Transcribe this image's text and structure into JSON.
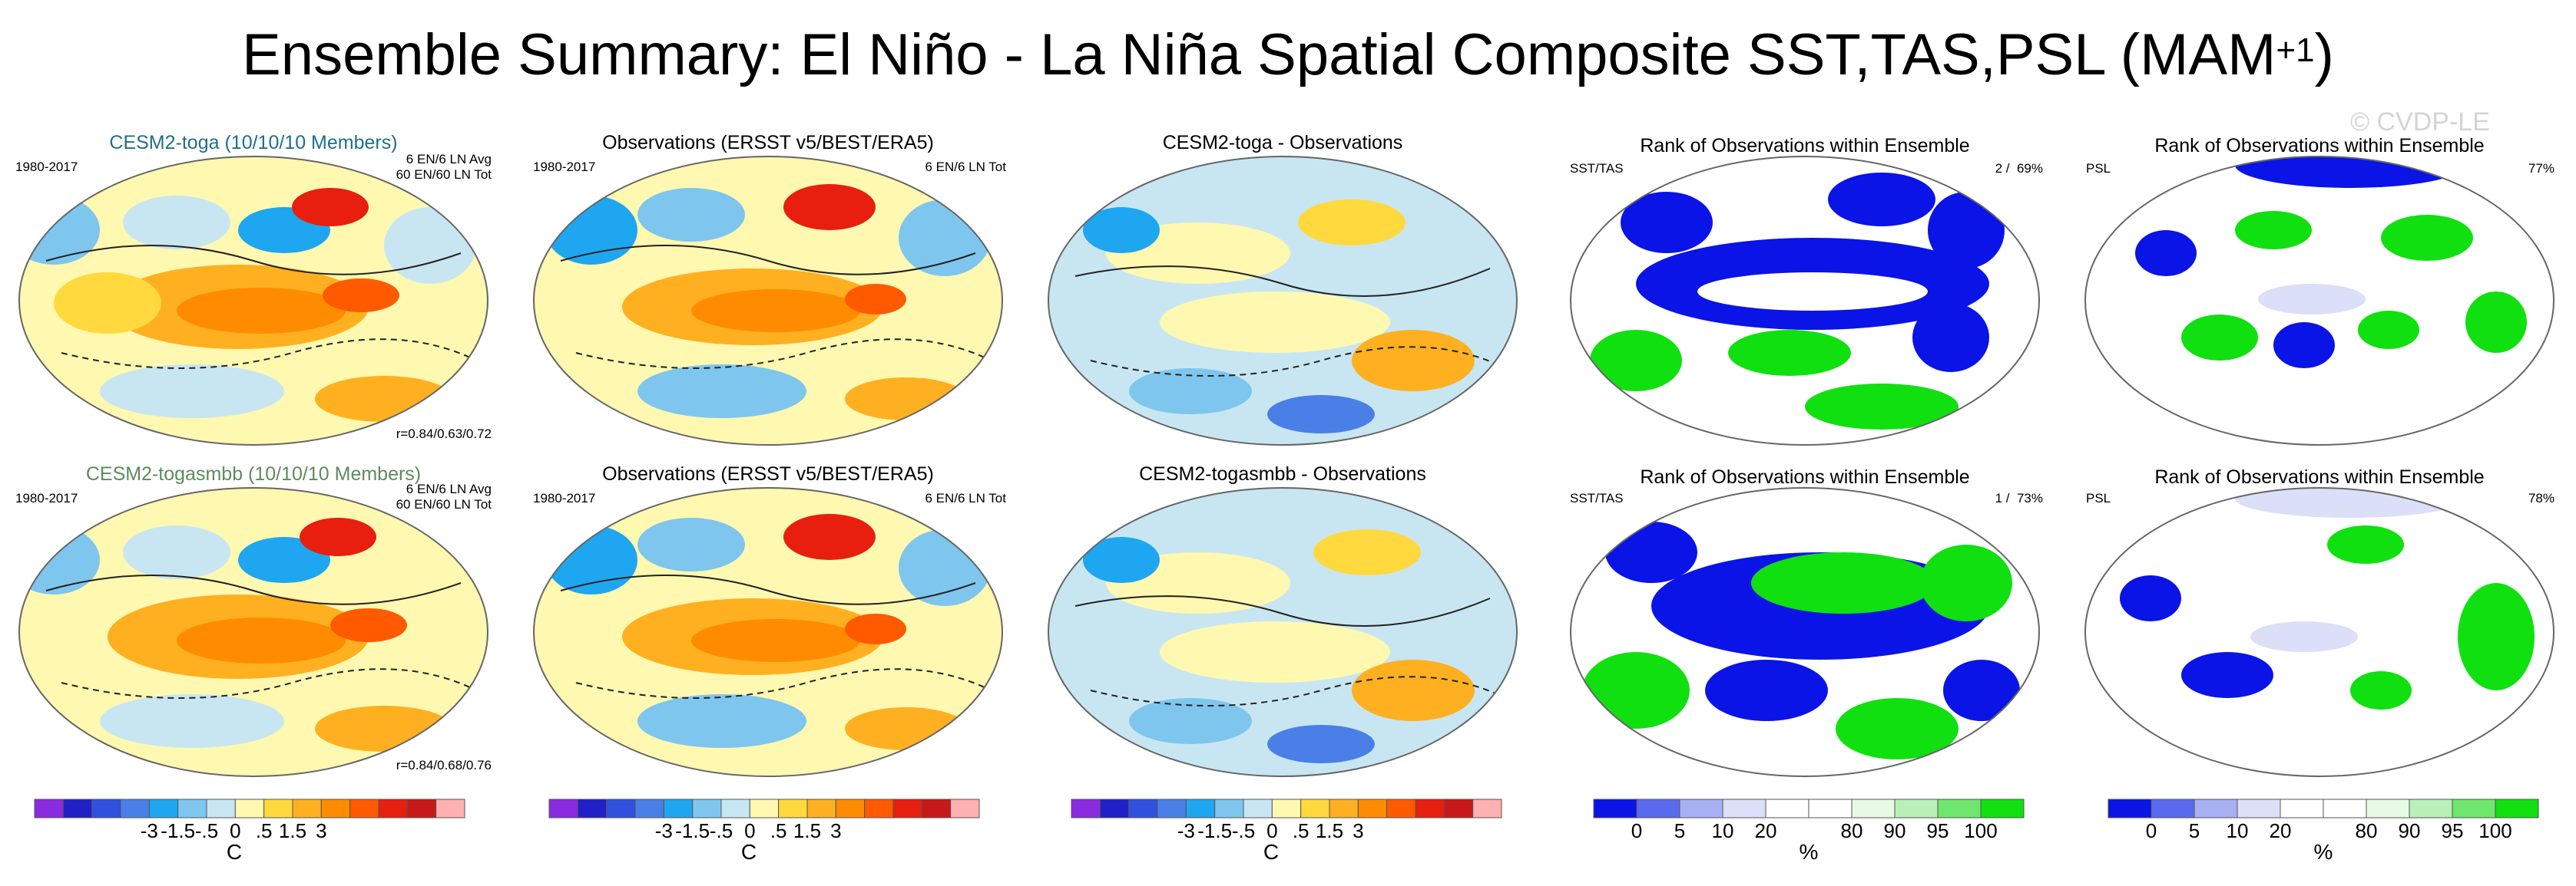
{
  "title": {
    "main": "Ensemble Summary: El Niño - La Niña Spatial Composite SST,TAS,PSL (MAM",
    "sup": "+1",
    "close": ")"
  },
  "watermark": "© CVDP-LE",
  "rows": [
    {
      "model": {
        "title": "CESM2-toga (10/10/10 Members)",
        "title_color": "#1f6f8b",
        "period": "1980-2017",
        "info1": "6 EN/6 LN Avg",
        "info2": "60 EN/60 LN Tot",
        "corr": "r=0.84/0.63/0.72"
      },
      "obs": {
        "title": "Observations (ERSST v5/BEST/ERA5)",
        "period": "1980-2017",
        "info": "6 EN/6 LN Tot"
      },
      "diff": {
        "title": "CESM2-toga - Observations"
      },
      "rank1": {
        "title": "Rank of Observations within Ensemble",
        "var": "SST/TAS",
        "pct": "2 /  69%"
      },
      "rank2": {
        "title": "Rank of Observations within Ensemble",
        "var": "PSL",
        "pct": "77%"
      }
    },
    {
      "model": {
        "title": "CESM2-togasmbb (10/10/10 Members)",
        "title_color": "#5e8a5e",
        "period": "1980-2017",
        "info1": "6 EN/6 LN Avg",
        "info2": "60 EN/60 LN Tot",
        "corr": "r=0.84/0.68/0.76"
      },
      "obs": {
        "title": "Observations (ERSST v5/BEST/ERA5)",
        "period": "1980-2017",
        "info": "6 EN/6 LN Tot"
      },
      "diff": {
        "title": "CESM2-togasmbb - Observations"
      },
      "rank1": {
        "title": "Rank of Observations within Ensemble",
        "var": "SST/TAS",
        "pct": "1 /  73%"
      },
      "rank2": {
        "title": "Rank of Observations within Ensemble",
        "var": "PSL",
        "pct": "78%"
      }
    }
  ],
  "colorbars": {
    "temp": {
      "colors": [
        "#8a2be2",
        "#2020c8",
        "#3050e0",
        "#4a7fe8",
        "#1fa6f0",
        "#7ec6ee",
        "#c8e6f2",
        "#fff8b0",
        "#ffd93d",
        "#ffb020",
        "#ff8c00",
        "#ff5a00",
        "#e81e0e",
        "#c81818",
        "#ffb0b0"
      ],
      "labels": [
        "-3",
        "-1.5",
        "-.5",
        "0",
        ".5",
        "1.5",
        "3"
      ],
      "unit": "C"
    },
    "rank": {
      "colors": [
        "#0a14e6",
        "#5a6aee",
        "#a8b0f4",
        "#dcdff8",
        "#ffffff",
        "#ffffff",
        "#e6fae6",
        "#b8f0b8",
        "#6ee66e",
        "#10e010"
      ],
      "labels": [
        "0",
        "5",
        "10",
        "20",
        "80",
        "90",
        "95",
        "100"
      ],
      "unit": "%"
    }
  },
  "chart_data": [
    {
      "type": "heatmap",
      "panel": "model",
      "title": "CESM2-toga (10/10/10 Members)",
      "variables": "SST/TAS anomaly (C) with PSL contours",
      "period": "1980-2017",
      "colorbar_ticks": [
        -3,
        -1.5,
        -0.5,
        0,
        0.5,
        1.5,
        3
      ]
    },
    {
      "type": "heatmap",
      "panel": "observations",
      "title": "Observations (ERSST v5/BEST/ERA5)",
      "colorbar_ticks": [
        -3,
        -1.5,
        -0.5,
        0,
        0.5,
        1.5,
        3
      ]
    },
    {
      "type": "heatmap",
      "panel": "difference",
      "title": "CESM2-toga - Observations"
    },
    {
      "type": "heatmap",
      "panel": "rank",
      "title": "Rank of Observations within Ensemble",
      "variable": "SST/TAS",
      "rank_ticks_pct": [
        0,
        5,
        10,
        20,
        80,
        90,
        95,
        100
      ]
    },
    {
      "type": "heatmap",
      "panel": "rank",
      "title": "Rank of Observations within Ensemble",
      "variable": "PSL",
      "rank_ticks_pct": [
        0,
        5,
        10,
        20,
        80,
        90,
        95,
        100
      ]
    }
  ]
}
